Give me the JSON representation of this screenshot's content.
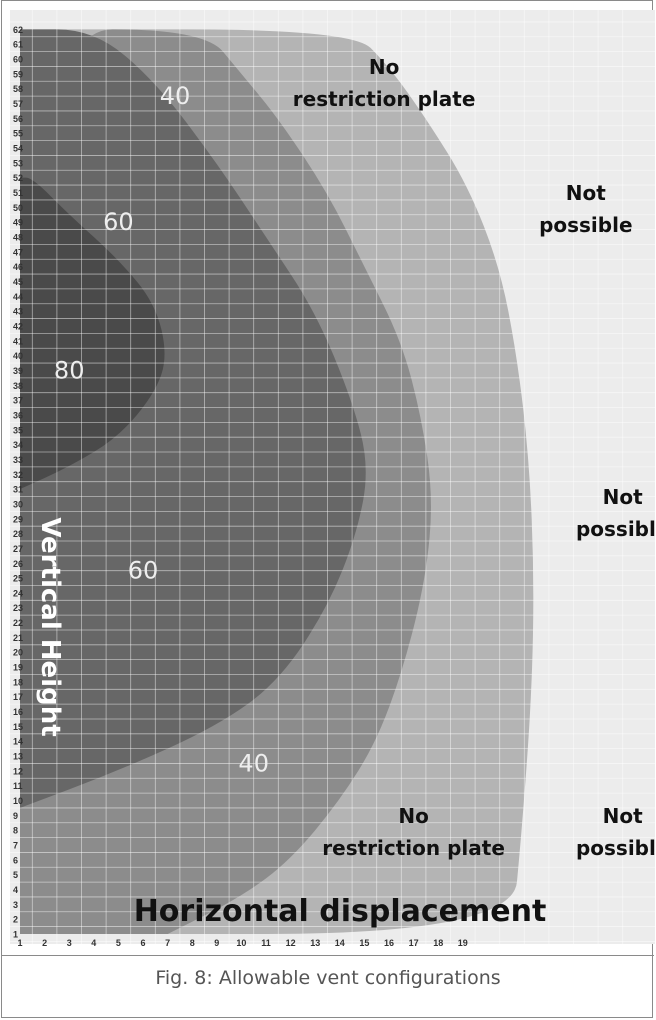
{
  "caption": "Fig. 8:  Allowable vent configurations",
  "chart_data": {
    "type": "heatmap",
    "title": "",
    "xlabel": "Horizontal displacement",
    "ylabel": "Vertical Height",
    "x_ticks": [
      "1",
      "2",
      "3",
      "4",
      "5",
      "6",
      "7",
      "8",
      "9",
      "10",
      "11",
      "12",
      "13",
      "14",
      "15",
      "16",
      "17",
      "18",
      "19"
    ],
    "y_ticks": [
      "1",
      "2",
      "3",
      "4",
      "5",
      "6",
      "7",
      "8",
      "9",
      "10",
      "11",
      "12",
      "13",
      "14",
      "15",
      "16",
      "17",
      "18",
      "19",
      "20",
      "21",
      "22",
      "23",
      "24",
      "25",
      "26",
      "27",
      "28",
      "29",
      "30",
      "31",
      "32",
      "33",
      "34",
      "35",
      "36",
      "37",
      "38",
      "39",
      "40",
      "41",
      "42",
      "43",
      "44",
      "45",
      "46",
      "47",
      "48",
      "49",
      "50",
      "51",
      "52",
      "53",
      "54",
      "55",
      "56",
      "57",
      "58",
      "59",
      "60",
      "61",
      "62"
    ],
    "xlim": [
      1,
      22
    ],
    "ylim": [
      1,
      62
    ],
    "grid": true,
    "regions": [
      {
        "name": "80",
        "color": "#4a4a4a",
        "label": "80",
        "boundary": [
          [
            1,
            31
          ],
          [
            3,
            32.5
          ],
          [
            5,
            34.5
          ],
          [
            6.5,
            37.5
          ],
          [
            7,
            40
          ],
          [
            6.5,
            43.5
          ],
          [
            5,
            46.5
          ],
          [
            3,
            49.5
          ],
          [
            1.5,
            52
          ],
          [
            1,
            52
          ]
        ]
      },
      {
        "name": "60",
        "color": "#676767",
        "label": "60",
        "boundary": [
          [
            1,
            9.5
          ],
          [
            5,
            12
          ],
          [
            9,
            15
          ],
          [
            11.5,
            18
          ],
          [
            13.5,
            23
          ],
          [
            14.7,
            28
          ],
          [
            15.2,
            32.5
          ],
          [
            14.5,
            37
          ],
          [
            13,
            43
          ],
          [
            11,
            48
          ],
          [
            9,
            53
          ],
          [
            6.5,
            58.5
          ],
          [
            4,
            62
          ],
          [
            1,
            62
          ]
        ]
      },
      {
        "name": "40",
        "color": "#8c8c8c",
        "label": "40",
        "boundary": [
          [
            7,
            1
          ],
          [
            10,
            3.5
          ],
          [
            12,
            6
          ],
          [
            14,
            10
          ],
          [
            15.5,
            14
          ],
          [
            16.6,
            19
          ],
          [
            17.5,
            25
          ],
          [
            17.8,
            30.5
          ],
          [
            17.3,
            36
          ],
          [
            16.5,
            41
          ],
          [
            15,
            46
          ],
          [
            13.5,
            51
          ],
          [
            11.5,
            56
          ],
          [
            10,
            59
          ],
          [
            8.5,
            62
          ],
          [
            1,
            62
          ],
          [
            1,
            1
          ]
        ]
      },
      {
        "name": "No restriction plate",
        "color": "#b4b4b4",
        "label": "No restriction plate",
        "boundary": [
          [
            1,
            1
          ],
          [
            21,
            1
          ],
          [
            21.4,
            8
          ],
          [
            21.8,
            17
          ],
          [
            21.9,
            25
          ],
          [
            21.7,
            33
          ],
          [
            21.2,
            40
          ],
          [
            20.5,
            46
          ],
          [
            19.2,
            51.5
          ],
          [
            17.5,
            56
          ],
          [
            16,
            59.5
          ],
          [
            14.5,
            62
          ],
          [
            1,
            62
          ]
        ]
      },
      {
        "name": "Not possible",
        "color": "#ececec",
        "label": "Not possible"
      }
    ],
    "contour_labels": [
      {
        "text": "80",
        "x": 3,
        "y": 39
      },
      {
        "text": "60",
        "x": 5,
        "y": 49
      },
      {
        "text": "60",
        "x": 6,
        "y": 25.5
      },
      {
        "text": "40",
        "x": 7.3,
        "y": 57.5
      },
      {
        "text": "40",
        "x": 10.5,
        "y": 12.5
      }
    ],
    "zone_labels": [
      {
        "lines": [
          "No",
          "restriction plate"
        ],
        "x": 15.8,
        "y": 59
      },
      {
        "lines": [
          "Not",
          "possible"
        ],
        "x": 24,
        "y": 50.5
      },
      {
        "lines": [
          "Not",
          "possible"
        ],
        "x": 25.5,
        "y": 30
      },
      {
        "lines": [
          "No",
          "restriction plate"
        ],
        "x": 17,
        "y": 8.5
      },
      {
        "lines": [
          "Not",
          "possible"
        ],
        "x": 25.5,
        "y": 8.5
      }
    ]
  }
}
